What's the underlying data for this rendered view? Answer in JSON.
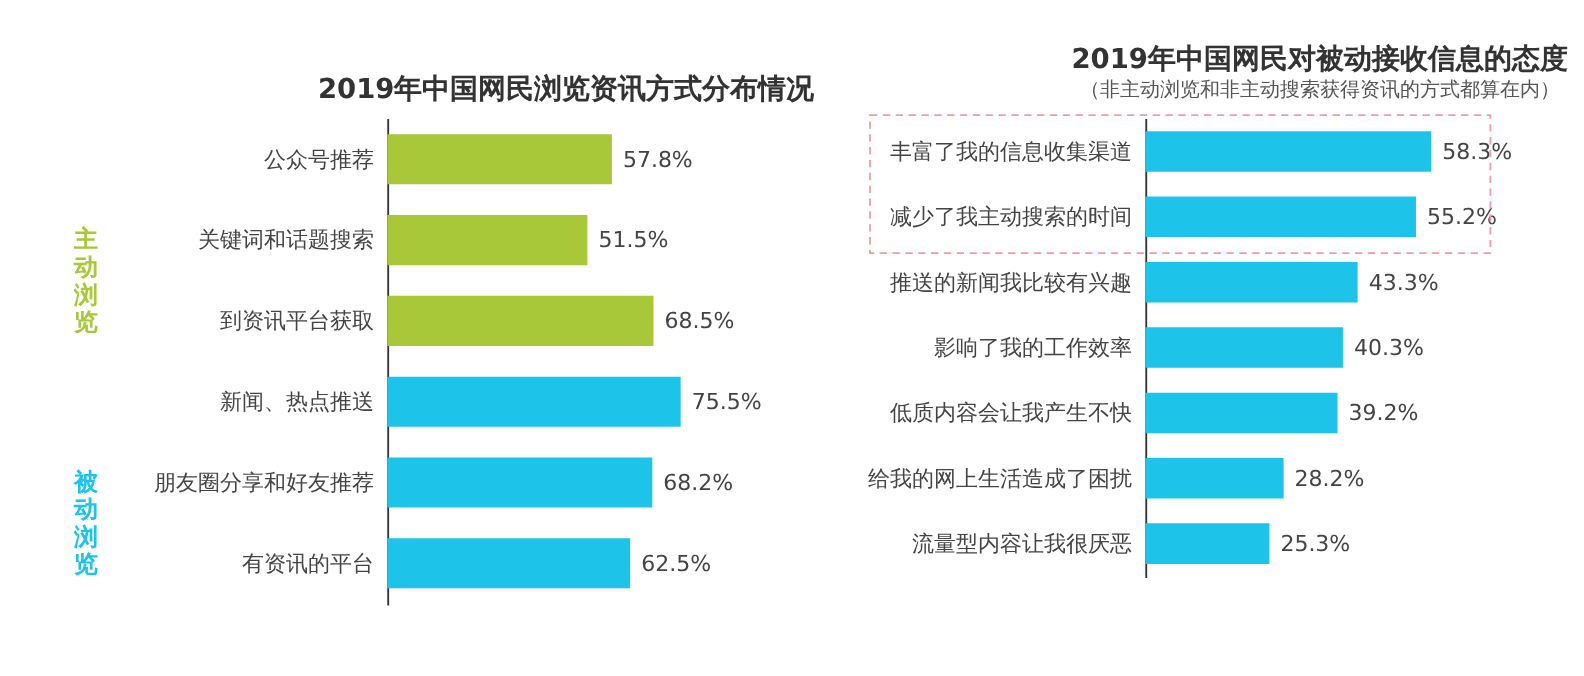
{
  "chart_data": [
    {
      "type": "bar",
      "orientation": "horizontal",
      "title": "2019年中国网民浏览资讯方式分布情况",
      "categories": [
        "公众号推荐",
        "关键词和话题搜索",
        "到资讯平台获取",
        "新闻、热点推送",
        "朋友圈分享和好友推荐",
        "有资讯的平台"
      ],
      "values": [
        57.8,
        51.5,
        68.5,
        75.5,
        68.2,
        62.5
      ],
      "colors": [
        "#a8c83a",
        "#a8c83a",
        "#a8c83a",
        "#1ec3ea",
        "#1ec3ea",
        "#1ec3ea"
      ],
      "value_labels": [
        "57.8%",
        "51.5%",
        "68.5%",
        "75.5%",
        "68.2%",
        "62.5%"
      ],
      "annotations": [
        "主动浏览",
        "被动浏览"
      ]
    },
    {
      "type": "bar",
      "orientation": "horizontal",
      "title": "2019年中国网民对被动接收信息的态度",
      "subtitle": "（非主动浏览和非主动搜索获得资讯的方式都算在内）",
      "categories": [
        "丰富了我的信息收集渠道",
        "减少了我主动搜索的时间",
        "推送的新闻我比较有兴趣",
        "影响了我的工作效率",
        "低质内容会让我产生不快",
        "给我的网上生活造成了困扰",
        "流量型内容让我很厌恶"
      ],
      "values": [
        58.3,
        55.2,
        43.3,
        40.3,
        39.2,
        28.2,
        25.3
      ],
      "value_labels": [
        "58.3%",
        "55.2%",
        "43.3%",
        "40.3%",
        "39.2%",
        "28.2%",
        "25.3%"
      ],
      "color": "#1ec3ea"
    }
  ]
}
